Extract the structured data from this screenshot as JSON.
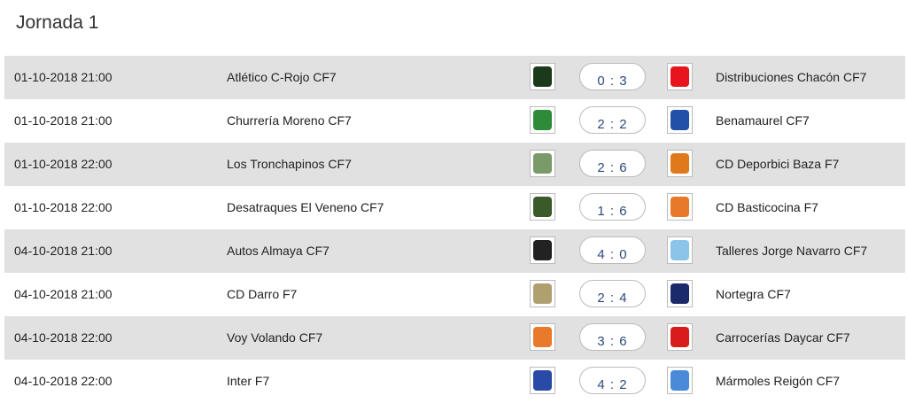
{
  "title": "Jornada 1",
  "matches": [
    {
      "date": "01-10-2018 21:00",
      "home": "Atlético C-Rojo CF7",
      "score": "0 : 3",
      "away": "Distribuciones Chacón CF7",
      "home_color": "#1b3a1b",
      "away_color": "#e8141c"
    },
    {
      "date": "01-10-2018 21:00",
      "home": "Churrería Moreno CF7",
      "score": "2 : 2",
      "away": "Benamaurel CF7",
      "home_color": "#2e8b3a",
      "away_color": "#2250a8"
    },
    {
      "date": "01-10-2018 22:00",
      "home": "Los Tronchapinos CF7",
      "score": "2 : 6",
      "away": "CD Deporbici Baza F7",
      "home_color": "#7a9a6a",
      "away_color": "#e0781c"
    },
    {
      "date": "01-10-2018 22:00",
      "home": "Desatraques El Veneno CF7",
      "score": "1 : 6",
      "away": "CD Basticocina F7",
      "home_color": "#3a5a2a",
      "away_color": "#e8782a"
    },
    {
      "date": "04-10-2018 21:00",
      "home": "Autos Almaya CF7",
      "score": "4 : 0",
      "away": "Talleres Jorge Navarro CF7",
      "home_color": "#222222",
      "away_color": "#8ac4e8"
    },
    {
      "date": "04-10-2018 21:00",
      "home": "CD Darro F7",
      "score": "2 : 4",
      "away": "Nortegra CF7",
      "home_color": "#b0a070",
      "away_color": "#1a2a6a"
    },
    {
      "date": "04-10-2018 22:00",
      "home": "Voy Volando CF7",
      "score": "3 : 6",
      "away": "Carrocerías Daycar CF7",
      "home_color": "#e87a2a",
      "away_color": "#d81c1c"
    },
    {
      "date": "04-10-2018 22:00",
      "home": "Inter F7",
      "score": "4 : 2",
      "away": "Mármoles Reigón CF7",
      "home_color": "#2a4aa8",
      "away_color": "#4a8ad8"
    }
  ]
}
